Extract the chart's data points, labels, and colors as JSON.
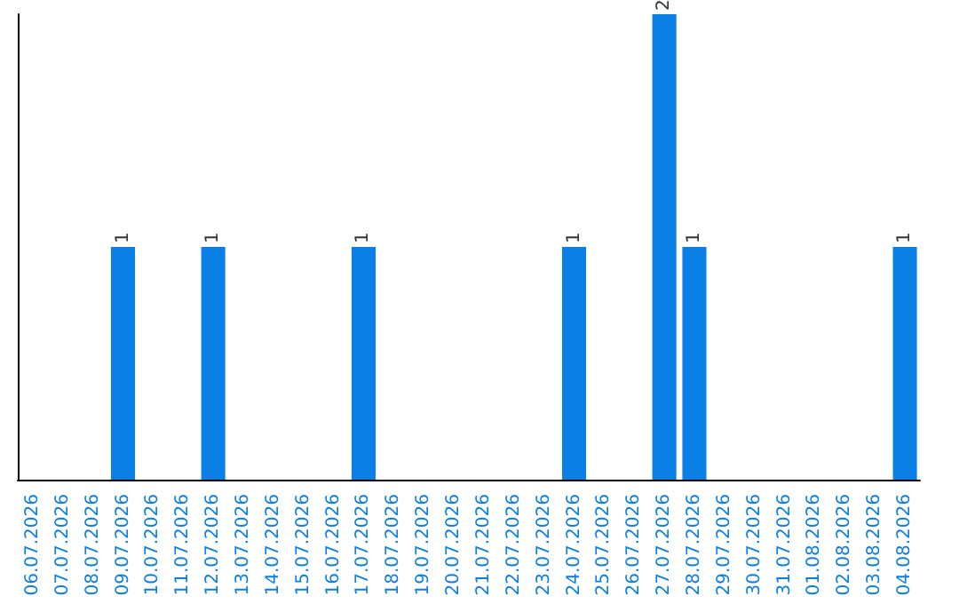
{
  "chart_data": {
    "type": "bar",
    "categories": [
      "06.07.2026",
      "07.07.2026",
      "08.07.2026",
      "09.07.2026",
      "10.07.2026",
      "11.07.2026",
      "12.07.2026",
      "13.07.2026",
      "14.07.2026",
      "15.07.2026",
      "16.07.2026",
      "17.07.2026",
      "18.07.2026",
      "19.07.2026",
      "20.07.2026",
      "21.07.2026",
      "22.07.2026",
      "23.07.2026",
      "24.07.2026",
      "25.07.2026",
      "26.07.2026",
      "27.07.2026",
      "28.07.2026",
      "29.07.2026",
      "30.07.2026",
      "31.07.2026",
      "01.08.2026",
      "02.08.2026",
      "03.08.2026",
      "04.08.2026"
    ],
    "values": [
      0,
      0,
      0,
      1,
      0,
      0,
      1,
      0,
      0,
      0,
      0,
      1,
      0,
      0,
      0,
      0,
      0,
      0,
      1,
      0,
      0,
      2,
      1,
      0,
      0,
      0,
      0,
      0,
      0,
      1
    ],
    "value_labels": [
      null,
      null,
      null,
      "1",
      null,
      null,
      "1",
      null,
      null,
      null,
      null,
      "1",
      null,
      null,
      null,
      null,
      null,
      null,
      "1",
      null,
      null,
      "2",
      "1",
      null,
      null,
      null,
      null,
      null,
      null,
      "1"
    ],
    "color": "#0a7fe6",
    "tick_labels": "x"
  }
}
